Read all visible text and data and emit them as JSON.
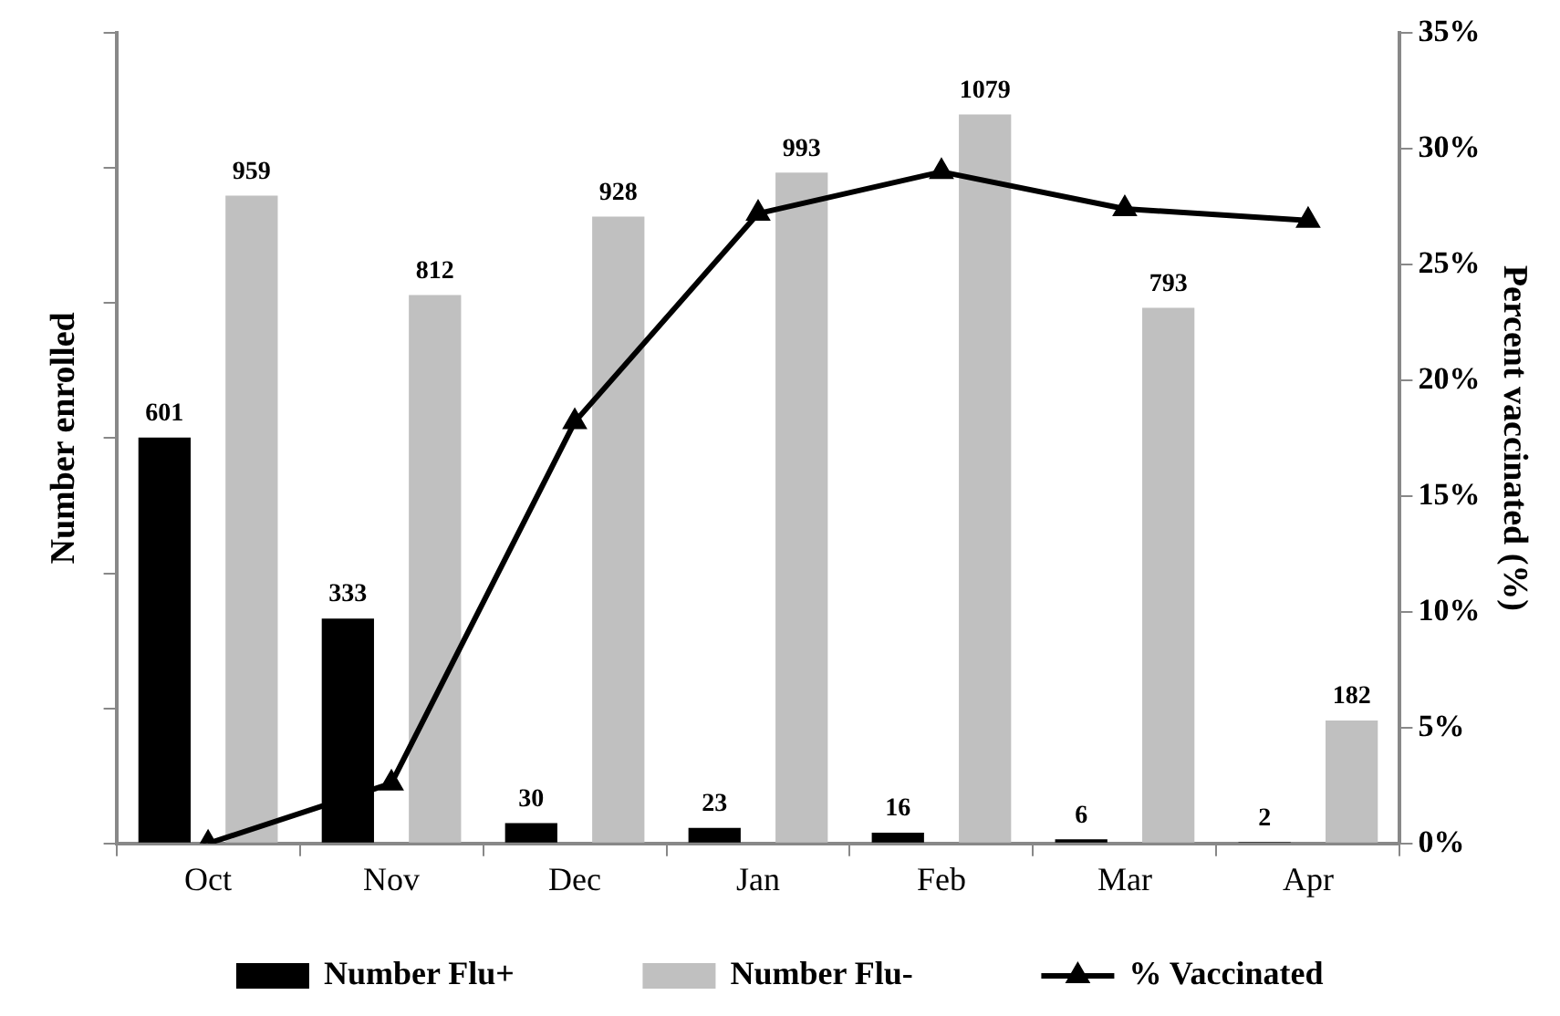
{
  "chart_data": {
    "type": "bar",
    "ylabel": "Number enrolled",
    "y2label": "Percent vaccinated (%)",
    "categories": [
      "Oct",
      "Nov",
      "Dec",
      "Jan",
      "Feb",
      "Mar",
      "Apr"
    ],
    "series": [
      {
        "name": "Number Flu+",
        "color": "#000000",
        "values": [
          601,
          333,
          30,
          23,
          16,
          6,
          2
        ],
        "value_labels": [
          "601",
          "333",
          "30",
          "23",
          "16",
          "6",
          "2"
        ]
      },
      {
        "name": "Number Flu-",
        "color": "#c0c0c0",
        "values": [
          959,
          812,
          928,
          993,
          1079,
          793,
          182
        ],
        "value_labels": [
          "959",
          "812",
          "928",
          "993",
          "1079",
          "793",
          "182"
        ]
      },
      {
        "name": "% Vaccinated",
        "type": "line",
        "axis": "y2",
        "color": "#000000",
        "marker": "triangle",
        "values": [
          0,
          2.6,
          18.2,
          27.2,
          29.0,
          27.4,
          26.9
        ]
      }
    ],
    "ylim": [
      0,
      1200
    ],
    "yticks": [
      {
        "value": 0,
        "label": null
      },
      {
        "value": 200,
        "label": null
      },
      {
        "value": 400,
        "label": null
      },
      {
        "value": 600,
        "label": null
      },
      {
        "value": 800,
        "label": null
      },
      {
        "value": 1000,
        "label": null
      },
      {
        "value": 1200,
        "label": null
      }
    ],
    "y2lim": [
      0,
      35
    ],
    "y2ticks": [
      {
        "value": 0,
        "label": "0%"
      },
      {
        "value": 5,
        "label": "5%"
      },
      {
        "value": 10,
        "label": "10%"
      },
      {
        "value": 15,
        "label": "15%"
      },
      {
        "value": 20,
        "label": "20%"
      },
      {
        "value": 25,
        "label": "25%"
      },
      {
        "value": 30,
        "label": "30%"
      },
      {
        "value": 35,
        "label": "35%"
      }
    ],
    "grid": false,
    "legend": "bottom"
  }
}
